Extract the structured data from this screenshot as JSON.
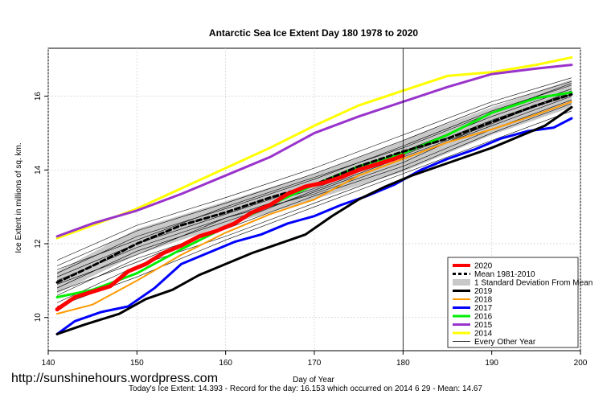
{
  "watermark": "http://sunshinehours.wordpress.com",
  "footer": "Today's Ice Extent: 14.393  - Record for the day: 16.153 which occurred on 2014 6 29  - Mean: 14.67",
  "chart_data": {
    "type": "line",
    "title": "Antarctic Sea Ice Extent Day 180 1978 to 2020",
    "xlabel": "Day of Year",
    "ylabel": "Ice Extent in millions of sq. km.",
    "xlim": [
      140,
      200
    ],
    "ylim": [
      9.1,
      17.3
    ],
    "xticks": [
      140,
      150,
      160,
      170,
      180,
      190,
      200
    ],
    "yticks": [
      10,
      12,
      14,
      16
    ],
    "grid": true,
    "marker_day": 180,
    "legend_position": "bottom-right",
    "std_band": {
      "name": "1 Standard Deviation From Mean",
      "color": "#c8c8c8",
      "x": [
        141,
        150,
        160,
        170,
        180,
        190,
        199
      ],
      "lower": [
        10.65,
        11.7,
        12.5,
        13.2,
        13.95,
        14.95,
        15.7
      ],
      "upper": [
        11.25,
        12.4,
        13.15,
        13.9,
        14.8,
        15.7,
        16.45
      ]
    },
    "series": [
      {
        "name": "2020",
        "color": "#ff0000",
        "width": 5,
        "dash": "",
        "x": [
          141,
          143,
          145,
          147,
          149,
          151,
          153,
          155,
          157,
          159,
          161,
          163,
          165,
          167,
          169,
          171,
          173,
          175,
          177,
          179,
          180
        ],
        "y": [
          10.22,
          10.55,
          10.7,
          10.85,
          11.25,
          11.45,
          11.75,
          11.95,
          12.2,
          12.35,
          12.55,
          12.85,
          13.05,
          13.35,
          13.55,
          13.65,
          13.8,
          14.0,
          14.15,
          14.3,
          14.39
        ]
      },
      {
        "name": "Mean 1981-2010",
        "color": "#000000",
        "width": 3,
        "dash": "6,4",
        "x": [
          141,
          145,
          150,
          155,
          160,
          165,
          170,
          175,
          180,
          185,
          190,
          195,
          199
        ],
        "y": [
          10.95,
          11.4,
          12.0,
          12.5,
          12.85,
          13.25,
          13.6,
          14.1,
          14.5,
          14.85,
          15.3,
          15.75,
          16.05
        ]
      },
      {
        "name": "2019",
        "color": "#000000",
        "width": 3,
        "dash": "",
        "x": [
          141,
          144,
          148,
          151,
          154,
          157,
          160,
          163,
          166,
          169,
          172,
          175,
          178,
          181,
          184,
          187,
          190,
          193,
          196,
          199
        ],
        "y": [
          9.55,
          9.8,
          10.1,
          10.5,
          10.75,
          11.15,
          11.45,
          11.75,
          12.0,
          12.25,
          12.75,
          13.2,
          13.55,
          13.85,
          14.1,
          14.35,
          14.6,
          14.9,
          15.2,
          15.7
        ]
      },
      {
        "name": "2018",
        "color": "#ff9900",
        "width": 2,
        "dash": "",
        "x": [
          141,
          145,
          150,
          155,
          160,
          165,
          170,
          175,
          180,
          185,
          190,
          195,
          199
        ],
        "y": [
          10.1,
          10.35,
          11.0,
          11.7,
          12.3,
          12.8,
          13.2,
          13.85,
          14.3,
          14.75,
          15.1,
          15.5,
          15.85
        ]
      },
      {
        "name": "2017",
        "color": "#0000ff",
        "width": 3,
        "dash": "",
        "x": [
          141,
          143,
          146,
          149,
          152,
          155,
          158,
          161,
          164,
          167,
          170,
          173,
          176,
          179,
          182,
          185,
          188,
          191,
          194,
          197,
          199
        ],
        "y": [
          9.55,
          9.9,
          10.15,
          10.3,
          10.8,
          11.45,
          11.75,
          12.05,
          12.25,
          12.55,
          12.75,
          13.05,
          13.3,
          13.6,
          14.0,
          14.3,
          14.55,
          14.85,
          15.05,
          15.15,
          15.4
        ]
      },
      {
        "name": "2016",
        "color": "#00ee00",
        "width": 3,
        "dash": "",
        "x": [
          141,
          145,
          150,
          155,
          160,
          165,
          170,
          175,
          180,
          185,
          190,
          195,
          199
        ],
        "y": [
          10.55,
          10.75,
          11.2,
          11.85,
          12.45,
          13.05,
          13.6,
          14.1,
          14.45,
          14.95,
          15.55,
          15.95,
          16.1
        ]
      },
      {
        "name": "2015",
        "color": "#9933cc",
        "width": 3,
        "dash": "",
        "x": [
          141,
          145,
          150,
          155,
          160,
          165,
          170,
          175,
          180,
          185,
          190,
          195,
          199
        ],
        "y": [
          12.2,
          12.55,
          12.9,
          13.35,
          13.85,
          14.35,
          15.0,
          15.45,
          15.85,
          16.25,
          16.6,
          16.75,
          16.85
        ]
      },
      {
        "name": "2014",
        "color": "#ffff00",
        "width": 3,
        "dash": "",
        "x": [
          141,
          145,
          150,
          155,
          160,
          165,
          170,
          175,
          180,
          185,
          190,
          195,
          199
        ],
        "y": [
          12.15,
          12.5,
          12.95,
          13.5,
          14.05,
          14.6,
          15.2,
          15.75,
          16.15,
          16.55,
          16.65,
          16.85,
          17.05
        ]
      }
    ],
    "every_other_year": {
      "name": "Every Other Year",
      "color": "#000000",
      "width": 0.6,
      "x": [
        141,
        150,
        160,
        170,
        180,
        190,
        199
      ],
      "y": [
        [
          10.4,
          11.4,
          12.2,
          13.1,
          14.0,
          15.0,
          15.8
        ],
        [
          10.6,
          11.6,
          12.4,
          13.3,
          14.1,
          15.1,
          15.9
        ],
        [
          10.8,
          11.8,
          12.6,
          13.4,
          14.3,
          15.2,
          16.0
        ],
        [
          11.0,
          11.9,
          12.7,
          13.5,
          14.4,
          15.35,
          16.1
        ],
        [
          11.1,
          12.0,
          12.8,
          13.6,
          14.5,
          15.45,
          16.2
        ],
        [
          11.2,
          12.2,
          12.95,
          13.75,
          14.65,
          15.6,
          16.3
        ],
        [
          11.4,
          12.35,
          13.1,
          13.9,
          14.8,
          15.75,
          16.4
        ],
        [
          11.55,
          12.5,
          13.25,
          14.05,
          14.95,
          15.85,
          16.5
        ],
        [
          10.9,
          11.7,
          12.7,
          13.35,
          14.2,
          15.3,
          16.05
        ],
        [
          10.3,
          11.1,
          12.1,
          13.0,
          13.9,
          14.8,
          15.6
        ],
        [
          11.3,
          12.1,
          13.0,
          13.8,
          14.6,
          15.55,
          16.35
        ],
        [
          10.7,
          11.5,
          12.5,
          13.45,
          14.35,
          15.25,
          16.15
        ]
      ]
    }
  }
}
